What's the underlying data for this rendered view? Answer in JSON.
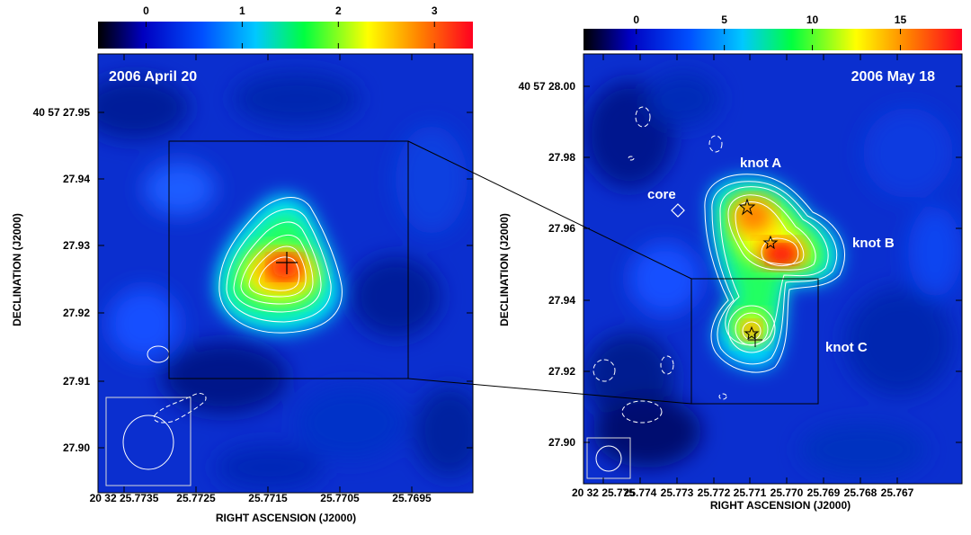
{
  "chart_data": [
    {
      "type": "heatmap",
      "panel": "left",
      "epoch_label": "2006 April 20",
      "colorbar": {
        "ticks": [
          0,
          1,
          2,
          3
        ],
        "range": [
          -0.5,
          3.4
        ],
        "colors": [
          "#000000",
          "#0000ff",
          "#00aaff",
          "#00ff00",
          "#ffff00",
          "#ff6600",
          "#ff0000"
        ]
      },
      "xlabel": "RIGHT ASCENSION (J2000)",
      "ylabel": "DECLINATION (J2000)",
      "xticks": [
        "20 32 25.7735",
        "25.7725",
        "25.7715",
        "25.7705",
        "25.7695"
      ],
      "yticks": [
        "40 57 27.95",
        "27.94",
        "27.93",
        "27.92",
        "27.91",
        "27.90"
      ],
      "sources": [
        {
          "label": "",
          "ra_offset": 0,
          "dec_offset": 0,
          "peak": 3.3
        }
      ]
    },
    {
      "type": "heatmap",
      "panel": "right",
      "epoch_label": "2006 May 18",
      "colorbar": {
        "ticks": [
          0,
          5,
          10,
          15
        ],
        "range": [
          -3,
          18.5
        ],
        "colors": [
          "#000000",
          "#0000ff",
          "#00aaff",
          "#00ff00",
          "#ffff00",
          "#ff6600",
          "#ff0000"
        ]
      },
      "xlabel": "RIGHT ASCENSION (J2000)",
      "ylabel": "DECLINATION (J2000)",
      "xticks": [
        "20 32 25.775",
        "25.774",
        "25.773",
        "25.772",
        "25.771",
        "25.770",
        "25.769",
        "25.768",
        "25.767"
      ],
      "yticks": [
        "40 57 28.00",
        "27.98",
        "27.96",
        "27.94",
        "27.92",
        "27.90"
      ],
      "annotations": [
        "knot A",
        "knot B",
        "knot C",
        "core"
      ]
    }
  ]
}
